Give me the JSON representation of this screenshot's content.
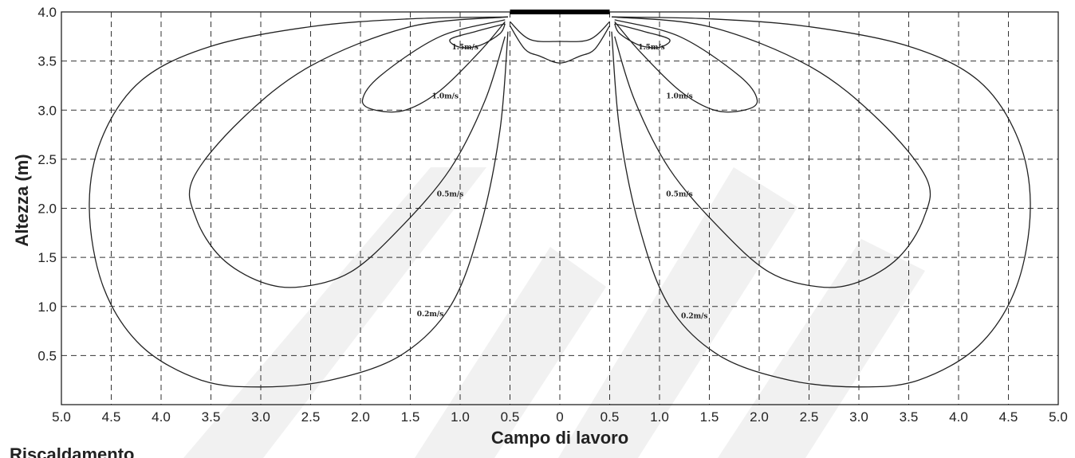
{
  "chart_data": {
    "type": "line",
    "title": "",
    "xlabel": "Campo di lavoro",
    "ylabel": "Altezza (m)",
    "xlim": [
      -5,
      5
    ],
    "ylim": [
      0,
      4
    ],
    "x_ticks": [
      -5,
      -4.5,
      -4,
      -3.5,
      -3,
      -2.5,
      -2,
      -1.5,
      -1,
      -0.5,
      0,
      0.5,
      1,
      1.5,
      2,
      2.5,
      3,
      3.5,
      4,
      4.5,
      5
    ],
    "x_tick_labels": [
      "5.0",
      "4.5",
      "4.0",
      "3.5",
      "3.0",
      "2.5",
      "2.0",
      "1.5",
      "1.0",
      "0.5",
      "0",
      "0.5",
      "1.0",
      "1.5",
      "2.0",
      "2.5",
      "3.0",
      "3.5",
      "4.0",
      "4.5",
      "5.0"
    ],
    "y_ticks": [
      0.5,
      1,
      1.5,
      2,
      2.5,
      3,
      3.5,
      4
    ],
    "y_tick_labels": [
      "0.5",
      "1.0",
      "1.5",
      "2.0",
      "2.5",
      "3.0",
      "3.5",
      "4.0"
    ],
    "grid": true,
    "emitter": {
      "x_from": -0.5,
      "x_to": 0.5,
      "y": 4.0
    },
    "series": [
      {
        "label": "0.2m/s",
        "label_pos": [
          -1.3,
          0.9
        ],
        "points": [
          [
            -0.52,
            3.95
          ],
          [
            -1.5,
            3.93
          ],
          [
            -2.5,
            3.85
          ],
          [
            -3.5,
            3.65
          ],
          [
            -4.2,
            3.3
          ],
          [
            -4.6,
            2.7
          ],
          [
            -4.72,
            2.0
          ],
          [
            -4.58,
            1.2
          ],
          [
            -4.2,
            0.6
          ],
          [
            -3.6,
            0.25
          ],
          [
            -3.0,
            0.18
          ],
          [
            -2.3,
            0.25
          ],
          [
            -1.6,
            0.5
          ],
          [
            -1.1,
            1.0
          ],
          [
            -0.8,
            1.8
          ],
          [
            -0.6,
            2.8
          ],
          [
            -0.52,
            3.8
          ]
        ]
      },
      {
        "label": "0.5m/s",
        "label_pos": [
          -1.1,
          2.12
        ],
        "points": [
          [
            -0.52,
            3.95
          ],
          [
            -1.5,
            3.85
          ],
          [
            -2.5,
            3.45
          ],
          [
            -3.2,
            2.9
          ],
          [
            -3.68,
            2.3
          ],
          [
            -3.65,
            1.9
          ],
          [
            -3.4,
            1.5
          ],
          [
            -3.0,
            1.25
          ],
          [
            -2.6,
            1.2
          ],
          [
            -2.1,
            1.35
          ],
          [
            -1.6,
            1.8
          ],
          [
            -1.1,
            2.4
          ],
          [
            -0.75,
            3.1
          ],
          [
            -0.55,
            3.75
          ]
        ]
      },
      {
        "label": "1.0m/s",
        "label_pos": [
          -1.15,
          3.12
        ],
        "points": [
          [
            -0.55,
            3.92
          ],
          [
            -1.2,
            3.75
          ],
          [
            -1.8,
            3.35
          ],
          [
            -1.98,
            3.1
          ],
          [
            -1.85,
            3.0
          ],
          [
            -1.55,
            3.0
          ],
          [
            -1.2,
            3.2
          ],
          [
            -0.8,
            3.6
          ],
          [
            -0.55,
            3.9
          ]
        ]
      },
      {
        "label": "1.5m/s",
        "label_pos": [
          -0.95,
          3.62
        ],
        "points": [
          [
            -0.55,
            3.88
          ],
          [
            -0.85,
            3.8
          ],
          [
            -1.1,
            3.72
          ],
          [
            -1.0,
            3.64
          ],
          [
            -0.8,
            3.66
          ],
          [
            -0.6,
            3.78
          ],
          [
            -0.55,
            3.88
          ]
        ]
      },
      {
        "label": "0.2m/s",
        "label_pos": [
          1.35,
          0.88
        ],
        "points": [
          [
            0.52,
            3.95
          ],
          [
            1.5,
            3.93
          ],
          [
            2.5,
            3.85
          ],
          [
            3.5,
            3.65
          ],
          [
            4.2,
            3.3
          ],
          [
            4.6,
            2.7
          ],
          [
            4.72,
            2.0
          ],
          [
            4.58,
            1.2
          ],
          [
            4.2,
            0.6
          ],
          [
            3.6,
            0.25
          ],
          [
            3.0,
            0.18
          ],
          [
            2.3,
            0.25
          ],
          [
            1.6,
            0.5
          ],
          [
            1.1,
            1.0
          ],
          [
            0.8,
            1.8
          ],
          [
            0.6,
            2.8
          ],
          [
            0.52,
            3.8
          ]
        ]
      },
      {
        "label": "0.5m/s",
        "label_pos": [
          1.2,
          2.12
        ],
        "points": [
          [
            0.52,
            3.95
          ],
          [
            1.5,
            3.85
          ],
          [
            2.5,
            3.45
          ],
          [
            3.2,
            2.9
          ],
          [
            3.68,
            2.3
          ],
          [
            3.65,
            1.9
          ],
          [
            3.4,
            1.5
          ],
          [
            3.0,
            1.25
          ],
          [
            2.6,
            1.2
          ],
          [
            2.1,
            1.35
          ],
          [
            1.6,
            1.8
          ],
          [
            1.1,
            2.4
          ],
          [
            0.75,
            3.1
          ],
          [
            0.55,
            3.75
          ]
        ]
      },
      {
        "label": "1.0m/s",
        "label_pos": [
          1.2,
          3.12
        ],
        "points": [
          [
            0.55,
            3.92
          ],
          [
            1.2,
            3.75
          ],
          [
            1.8,
            3.35
          ],
          [
            1.98,
            3.1
          ],
          [
            1.85,
            3.0
          ],
          [
            1.55,
            3.0
          ],
          [
            1.2,
            3.2
          ],
          [
            0.8,
            3.6
          ],
          [
            0.55,
            3.9
          ]
        ]
      },
      {
        "label": "1.5m/s",
        "label_pos": [
          0.92,
          3.62
        ],
        "points": [
          [
            0.55,
            3.88
          ],
          [
            0.85,
            3.8
          ],
          [
            1.1,
            3.72
          ],
          [
            1.0,
            3.64
          ],
          [
            0.8,
            3.66
          ],
          [
            0.6,
            3.78
          ],
          [
            0.55,
            3.88
          ]
        ]
      },
      {
        "label": "",
        "points": [
          [
            -0.5,
            3.9
          ],
          [
            -0.3,
            3.72
          ],
          [
            0.0,
            3.7
          ],
          [
            0.3,
            3.72
          ],
          [
            0.5,
            3.9
          ]
        ]
      },
      {
        "label": "",
        "points": [
          [
            -0.5,
            3.86
          ],
          [
            -0.35,
            3.62
          ],
          [
            -0.2,
            3.55
          ],
          [
            0.0,
            3.48
          ],
          [
            0.2,
            3.55
          ],
          [
            0.35,
            3.62
          ],
          [
            0.5,
            3.86
          ]
        ]
      }
    ]
  },
  "caption": "Riscaldamento"
}
